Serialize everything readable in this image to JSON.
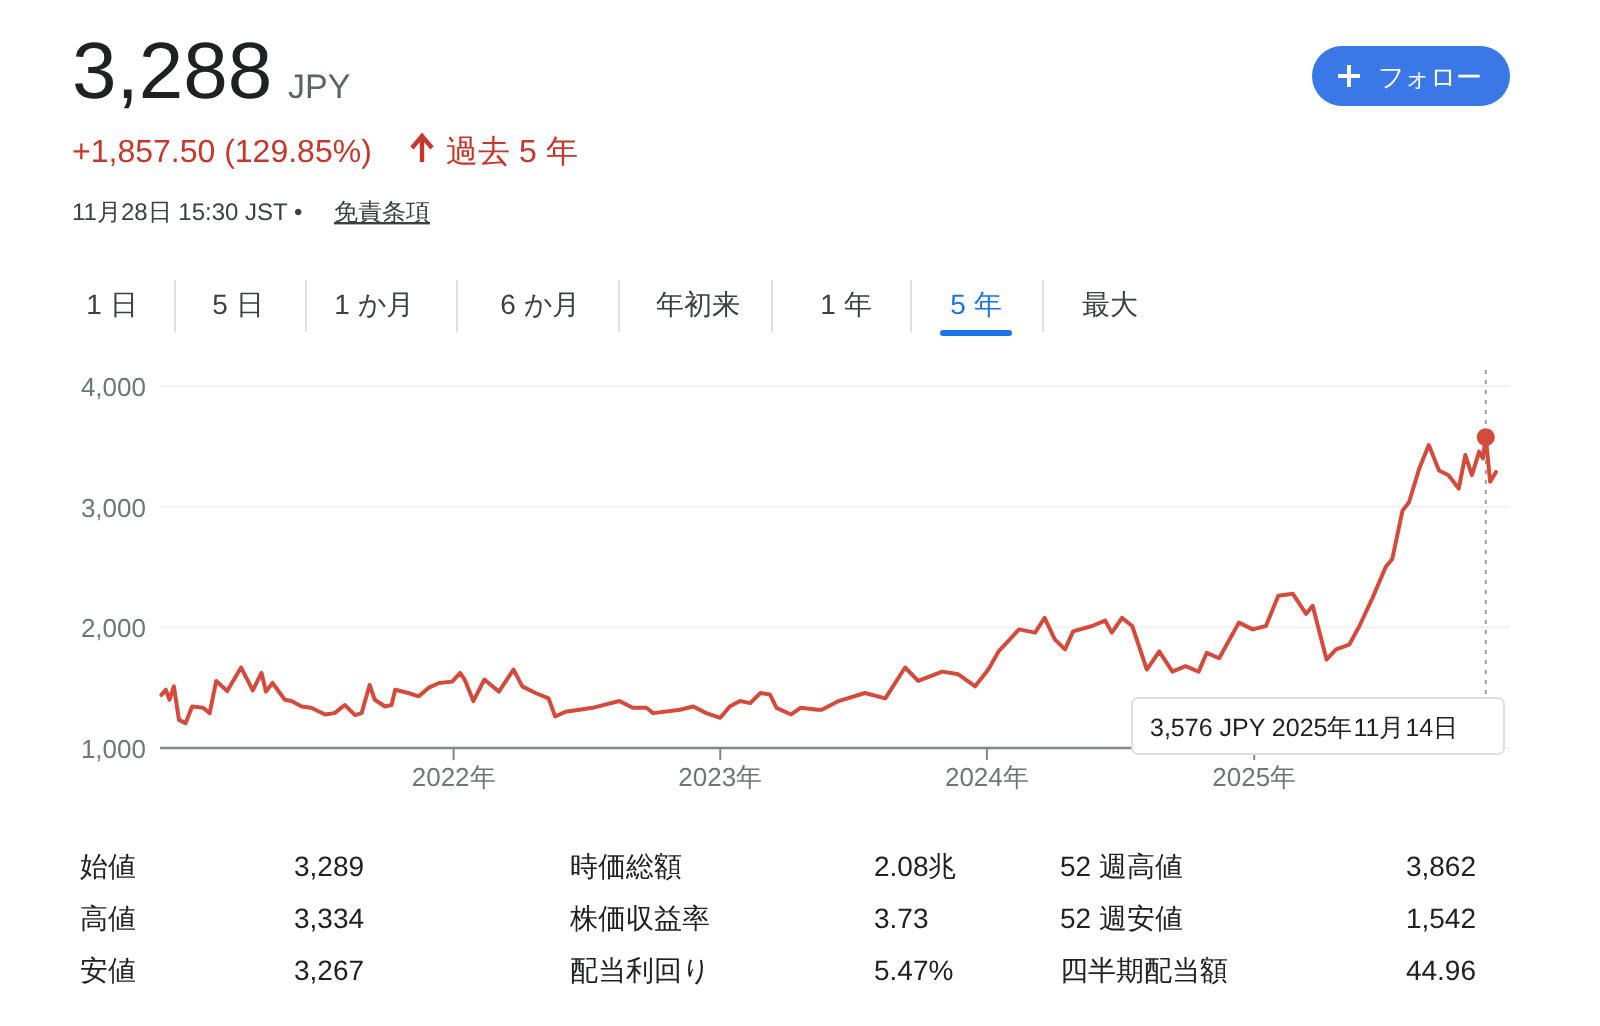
{
  "chart_data": {
    "type": "line",
    "title": "3,288",
    "x": [
      "2020-11-27",
      "2020-12-03",
      "2020-12-08",
      "2020-12-14",
      "2020-12-21",
      "2020-12-30",
      "2021-01-08",
      "2021-01-23",
      "2021-02-01",
      "2021-02-10",
      "2021-02-25",
      "2021-03-16",
      "2021-04-01",
      "2021-04-13",
      "2021-04-19",
      "2021-04-28",
      "2021-05-15",
      "2021-05-24",
      "2021-06-07",
      "2021-06-20",
      "2021-07-09",
      "2021-07-22",
      "2021-08-05",
      "2021-08-19",
      "2021-08-28",
      "2021-09-08",
      "2021-09-15",
      "2021-09-29",
      "2021-10-08",
      "2021-10-13",
      "2021-10-31",
      "2021-11-14",
      "2021-11-28",
      "2021-12-12",
      "2021-12-30",
      "2022-01-10",
      "2022-01-17",
      "2022-01-28",
      "2022-02-12",
      "2022-03-04",
      "2022-03-24",
      "2022-04-05",
      "2022-04-23",
      "2022-05-11",
      "2022-05-20",
      "2022-06-03",
      "2022-06-22",
      "2022-07-10",
      "2022-08-16",
      "2022-09-03",
      "2022-09-22",
      "2022-10-01",
      "2022-11-07",
      "2022-11-25",
      "2022-12-13",
      "2023-01-01",
      "2023-01-14",
      "2023-01-28",
      "2023-02-11",
      "2023-02-25",
      "2023-03-10",
      "2023-03-19",
      "2023-04-08",
      "2023-04-21",
      "2023-05-14",
      "2023-05-20",
      "2023-06-12",
      "2023-07-18",
      "2023-08-15",
      "2023-09-11",
      "2023-09-29",
      "2023-11-01",
      "2023-11-23",
      "2023-12-16",
      "2024-01-03",
      "2024-01-17",
      "2024-02-14",
      "2024-03-07",
      "2024-03-20",
      "2024-04-03",
      "2024-04-17",
      "2024-04-28",
      "2024-05-24",
      "2024-06-11",
      "2024-06-20",
      "2024-07-04",
      "2024-07-18",
      "2024-08-07",
      "2024-08-24",
      "2024-09-11",
      "2024-09-29",
      "2024-10-17",
      "2024-10-28",
      "2024-11-14",
      "2024-12-11",
      "2024-12-30",
      "2025-01-17",
      "2025-02-03",
      "2025-02-23",
      "2025-03-13",
      "2025-03-22",
      "2025-04-10",
      "2025-04-23",
      "2025-05-11",
      "2025-05-25",
      "2025-06-12",
      "2025-06-30",
      "2025-07-09",
      "2025-07-23",
      "2025-08-01",
      "2025-08-15",
      "2025-08-28",
      "2025-09-11",
      "2025-09-24",
      "2025-10-08",
      "2025-10-17",
      "2025-10-26",
      "2025-11-05",
      "2025-11-10",
      "2025-11-14",
      "2025-11-20",
      "2025-11-28"
    ],
    "series": [
      {
        "color": "#d44b3b",
        "values": [
          1440,
          1483,
          1400,
          1511,
          1233,
          1206,
          1344,
          1333,
          1289,
          1556,
          1472,
          1667,
          1478,
          1622,
          1467,
          1539,
          1400,
          1389,
          1344,
          1333,
          1278,
          1289,
          1356,
          1272,
          1289,
          1522,
          1400,
          1344,
          1356,
          1483,
          1456,
          1428,
          1500,
          1539,
          1550,
          1622,
          1556,
          1389,
          1567,
          1467,
          1650,
          1511,
          1456,
          1411,
          1261,
          1300,
          1317,
          1333,
          1389,
          1333,
          1333,
          1289,
          1317,
          1344,
          1289,
          1250,
          1344,
          1389,
          1372,
          1456,
          1444,
          1333,
          1278,
          1333,
          1317,
          1317,
          1389,
          1456,
          1411,
          1667,
          1556,
          1633,
          1611,
          1511,
          1650,
          1800,
          1983,
          1956,
          2078,
          1900,
          1817,
          1967,
          2011,
          2056,
          1956,
          2078,
          2011,
          1650,
          1800,
          1633,
          1678,
          1633,
          1789,
          1744,
          2039,
          1983,
          2011,
          2261,
          2278,
          2111,
          2178,
          1733,
          1817,
          1856,
          2011,
          2244,
          2500,
          2567,
          2967,
          3039,
          3317,
          3511,
          3300,
          3261,
          3150,
          3428,
          3261,
          3456,
          3400,
          3576,
          3206,
          3288
        ]
      }
    ],
    "xlim": [
      "2020-11-25",
      "2025-11-28"
    ],
    "xticks": [
      {
        "value": "2022-01-01",
        "label": "2022年"
      },
      {
        "value": "2023-01-01",
        "label": "2023年"
      },
      {
        "value": "2024-01-01",
        "label": "2024年"
      },
      {
        "value": "2025-01-01",
        "label": "2025年"
      }
    ],
    "ylim": [
      1000,
      4000
    ],
    "yticks": [
      {
        "value": 1000,
        "label": "1,000"
      },
      {
        "value": 2000,
        "label": "2,000"
      },
      {
        "value": 3000,
        "label": "3,000"
      },
      {
        "value": 4000,
        "label": "4,000"
      }
    ],
    "grid": "y",
    "marker": "none",
    "line_style": "solid",
    "ref_lines": [
      {
        "axis": "x",
        "value": "2025-11-14",
        "line_style": "dotted",
        "color": "#9e9e9e"
      }
    ],
    "annotations": [
      "JPY",
      "+1,857.50 (129.85%)",
      "過去 5 年",
      "11月28日 15:30 JST •",
      "免責条項",
      "フォロー",
      "1 日",
      "5 日",
      "1 か月",
      "6 か月",
      "年初来",
      "1 年",
      "5 年",
      "最大",
      "始値",
      "3,289",
      "時価総額",
      "2.08兆",
      "52 週高値",
      "3,862",
      "高値",
      "3,334",
      "株価収益率",
      "3.73",
      "52 週安値",
      "1,542",
      "安値",
      "3,267",
      "配当利回り",
      "5.47%",
      "四半期配当額",
      "44.96",
      "3,576 JPY  2025年11月14日"
    ]
  }
}
